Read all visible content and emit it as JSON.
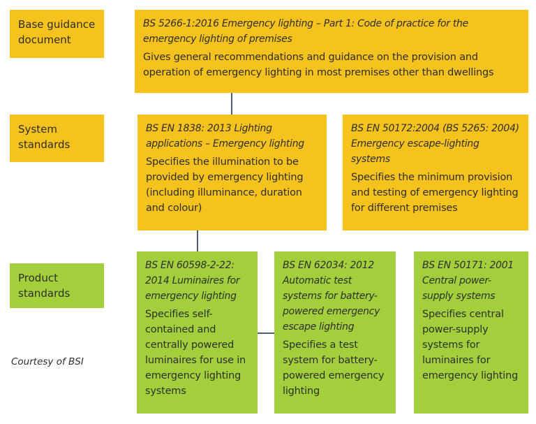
{
  "rows": [
    {
      "label": "Base guidance document"
    },
    {
      "label": "System standards"
    },
    {
      "label": "Product standards"
    }
  ],
  "nodes": [
    {
      "title": "BS 5266-1:2016 Emergency lighting – Part 1: Code of practice for the emergency lighting of premises",
      "description": "Gives general recommendations and guidance on the provision and operation of emergency lighting in most premises other than dwellings"
    },
    {
      "title": "BS EN 1838: 2013 Lighting applications – Emergency lighting",
      "description": "Specifies the illumination to be provided by emergency lighting (including illuminance, duration and colour)"
    },
    {
      "title": "BS EN 50172:2004 (BS 5265: 2004) Emergency escape-lighting systems",
      "description": "Specifies the minimum provision and testing of emergency lighting for different premises"
    },
    {
      "title": "BS EN 60598-2-22: 2014 Luminaires for emergency lighting",
      "description": "Specifies self-contained and centrally powered luminaires for use in emergency lighting systems"
    },
    {
      "title": "BS EN 62034: 2012 Automatic test systems for battery-powered emergency escape lighting",
      "description": "Specifies a test system for battery-powered emergency lighting"
    },
    {
      "title": "BS EN 50171: 2001 Central power-supply systems",
      "description": "Specifies central power-supply systems for luminaires for emergency lighting"
    }
  ],
  "credit": "Courtesy of BSI"
}
